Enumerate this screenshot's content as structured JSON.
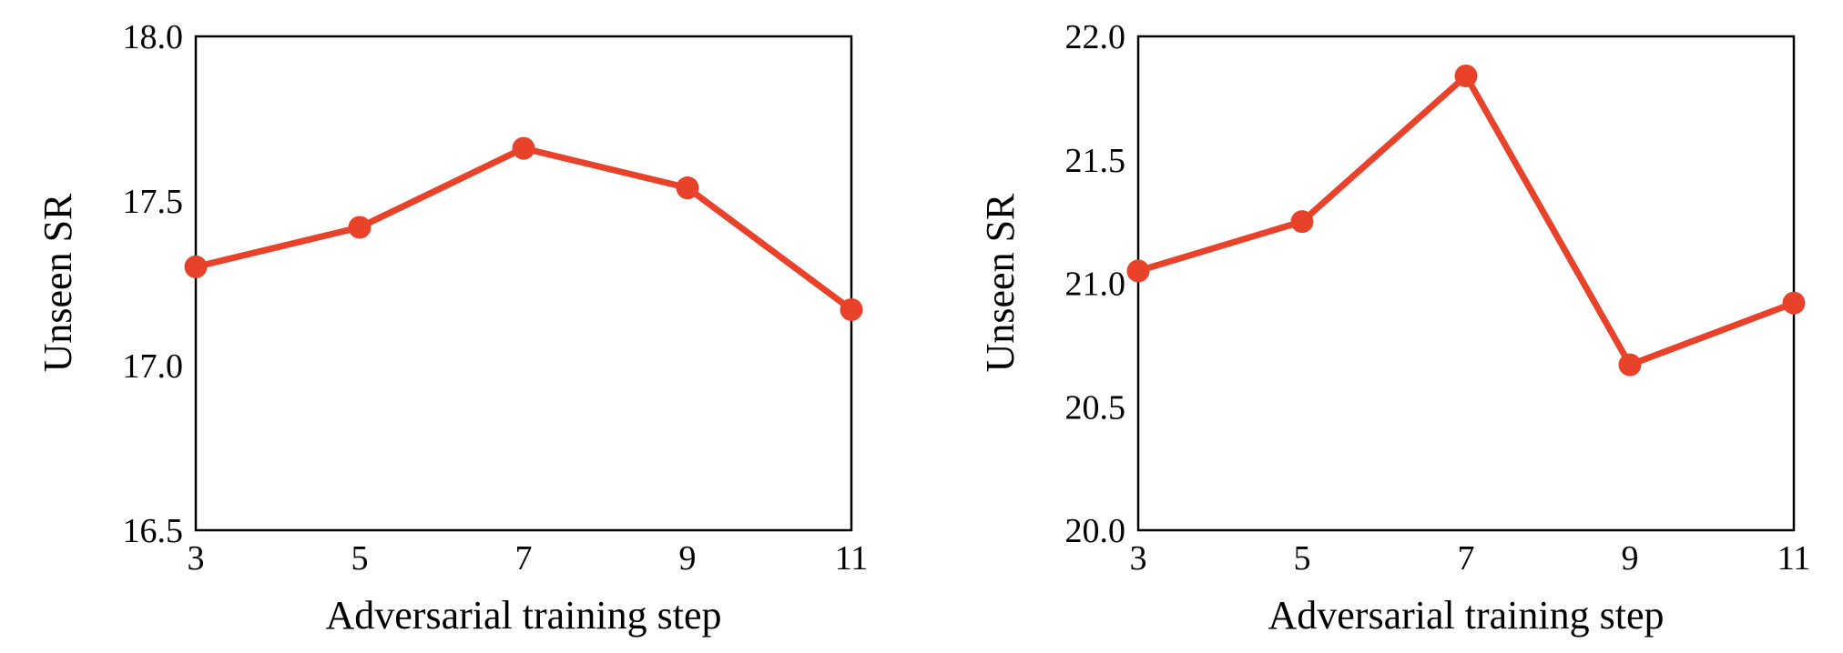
{
  "chart_data": [
    {
      "type": "line",
      "title": "",
      "xlabel": "Adversarial training step",
      "ylabel": "Unseen SR",
      "categories": [
        "3",
        "5",
        "7",
        "9",
        "11"
      ],
      "yticks": [
        "16.5",
        "17.0",
        "17.5",
        "18.0"
      ],
      "ylim": [
        16.5,
        18.0
      ],
      "series": [
        {
          "name": "",
          "color": "#e8422a",
          "values": [
            17.3,
            17.42,
            17.66,
            17.54,
            17.17
          ]
        }
      ],
      "grid": false,
      "legend": "none"
    },
    {
      "type": "line",
      "title": "",
      "xlabel": "Adversarial training step",
      "ylabel": "Unseen SR",
      "categories": [
        "3",
        "5",
        "7",
        "9",
        "11"
      ],
      "yticks": [
        "20.0",
        "20.5",
        "21.0",
        "21.5",
        "22.0"
      ],
      "ylim": [
        20.0,
        22.0
      ],
      "series": [
        {
          "name": "",
          "color": "#e8422a",
          "values": [
            21.05,
            21.25,
            21.84,
            20.67,
            20.92
          ]
        }
      ],
      "grid": false,
      "legend": "none"
    }
  ]
}
